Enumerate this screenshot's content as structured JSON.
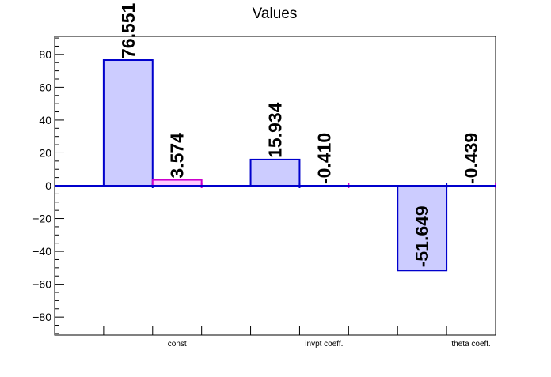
{
  "chart_data": {
    "type": "bar",
    "title": "Values",
    "xlabel": "",
    "ylabel": "",
    "ylim": [
      -91,
      91
    ],
    "yticks": [
      -80,
      -60,
      -40,
      -20,
      0,
      20,
      40,
      60,
      80
    ],
    "ytick_labels": [
      "−80",
      "−60",
      "−40",
      "−20",
      "0",
      "20",
      "40",
      "60",
      "80"
    ],
    "categories": [
      "const",
      "invpt coeff.",
      "theta coeff."
    ],
    "series": [
      {
        "values": [
          76.551,
          15.934,
          -51.649
        ],
        "labels": [
          "76.551",
          "15.934",
          "-51.649"
        ],
        "color": "#0000cc",
        "fill": "#ccccff"
      },
      {
        "values": [
          3.574,
          -0.41,
          -0.439
        ],
        "labels": [
          "3.574",
          "-0.410",
          "-0.439"
        ],
        "color": "#cc00cc",
        "fill": "#ffccff"
      }
    ],
    "grid": false,
    "legend": "none"
  }
}
